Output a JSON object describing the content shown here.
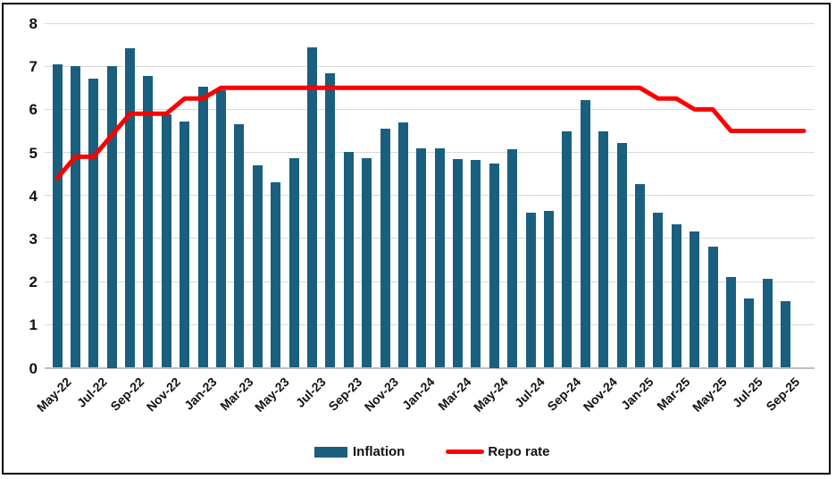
{
  "window": {
    "background": "#ffffff",
    "frame_border_color": "#000000"
  },
  "legend": {
    "inflation_label": "Inflation",
    "repo_label": "Repo rate"
  },
  "chart_data": {
    "type": "bar",
    "note": "combo column + line chart, no title, legend at bottom center",
    "x": [
      "May-22",
      "Jun-22",
      "Jul-22",
      "Aug-22",
      "Sep-22",
      "Oct-22",
      "Nov-22",
      "Dec-22",
      "Jan-23",
      "Feb-23",
      "Mar-23",
      "Apr-23",
      "May-23",
      "Jun-23",
      "Jul-23",
      "Aug-23",
      "Sep-23",
      "Oct-23",
      "Nov-23",
      "Dec-23",
      "Jan-24",
      "Feb-24",
      "Mar-24",
      "Apr-24",
      "May-24",
      "Jun-24",
      "Jul-24",
      "Aug-24",
      "Sep-24",
      "Oct-24",
      "Nov-24",
      "Dec-24",
      "Jan-25",
      "Feb-25",
      "Mar-25",
      "Apr-25",
      "May-25",
      "Jun-25",
      "Jul-25",
      "Aug-25",
      "Sep-25",
      "Oct-25"
    ],
    "x_tick_labels": [
      "May-22",
      "Jul-22",
      "Sep-22",
      "Nov-22",
      "Jan-23",
      "Mar-23",
      "May-23",
      "Jul-23",
      "Sep-23",
      "Nov-23",
      "Jan-24",
      "Mar-24",
      "May-24",
      "Jul-24",
      "Sep-24",
      "Nov-24",
      "Jan-25",
      "Mar-25",
      "May-25",
      "Jul-25",
      "Sep-25"
    ],
    "x_tick_every": 2,
    "series": [
      {
        "name": "Inflation",
        "type": "bar",
        "color": "#1a5f7e",
        "values": [
          7.04,
          7.01,
          6.71,
          7.0,
          7.41,
          6.77,
          5.88,
          5.72,
          6.52,
          6.44,
          5.66,
          4.7,
          4.31,
          4.87,
          7.44,
          6.83,
          5.02,
          4.87,
          5.55,
          5.69,
          5.1,
          5.09,
          4.85,
          4.83,
          4.75,
          5.08,
          3.6,
          3.65,
          5.49,
          6.21,
          5.48,
          5.22,
          4.26,
          3.61,
          3.34,
          3.16,
          2.82,
          2.1,
          1.61,
          2.07,
          1.54
        ]
      },
      {
        "name": "Repo rate",
        "type": "line",
        "color": "#fb0000",
        "values": [
          4.4,
          4.9,
          4.9,
          5.4,
          5.9,
          5.9,
          5.9,
          6.25,
          6.25,
          6.5,
          6.5,
          6.5,
          6.5,
          6.5,
          6.5,
          6.5,
          6.5,
          6.5,
          6.5,
          6.5,
          6.5,
          6.5,
          6.5,
          6.5,
          6.5,
          6.5,
          6.5,
          6.5,
          6.5,
          6.5,
          6.5,
          6.5,
          6.5,
          6.25,
          6.25,
          6.0,
          6.0,
          5.5,
          5.5,
          5.5,
          5.5,
          5.5
        ]
      }
    ],
    "ylim": [
      0,
      8
    ],
    "y_ticks": [
      "0",
      "1",
      "2",
      "3",
      "4",
      "5",
      "6",
      "7",
      "8"
    ],
    "grid": "horizontal",
    "gridline_color": "#d9d9d9",
    "axis_line_color": "#bfbfbf",
    "legend_position": "bottom-center"
  }
}
